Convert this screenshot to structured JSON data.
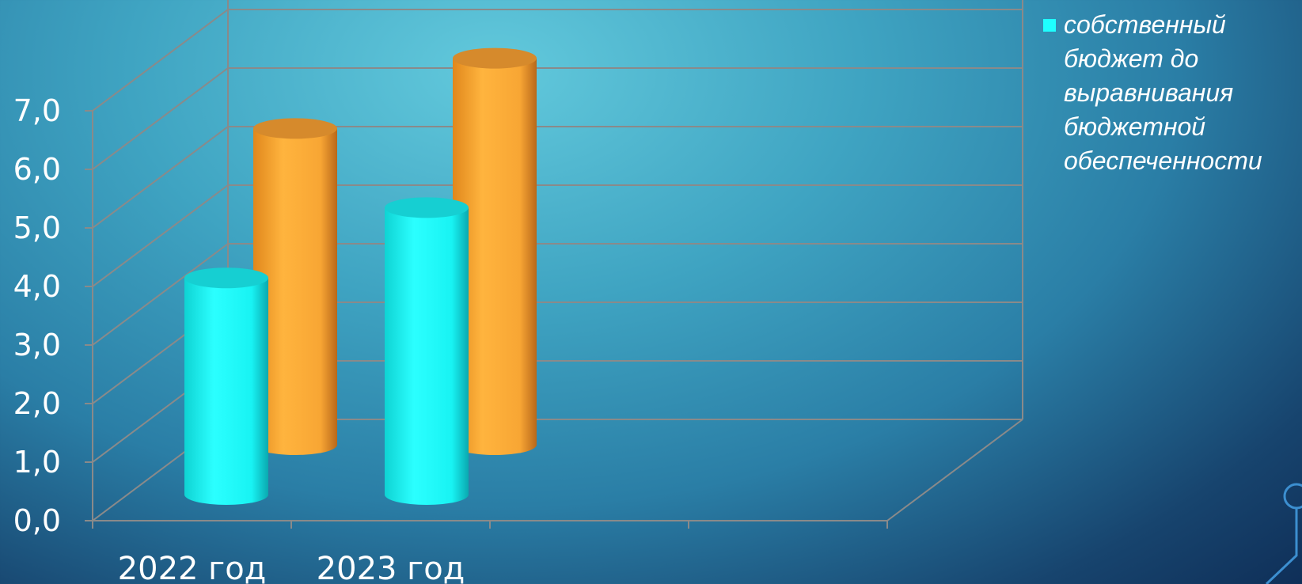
{
  "chart_data": {
    "type": "bar",
    "style": "3d-cylinder",
    "categories": [
      "2022 год",
      "2023 год"
    ],
    "series": [
      {
        "name": "собственный бюджет до выравнивания бюджетной обеспеченности",
        "color": "#1effff",
        "values": [
          3.7,
          4.9
        ]
      },
      {
        "name": "",
        "color": "#ffad3a",
        "values": [
          5.4,
          6.6
        ]
      }
    ],
    "y_ticks": [
      "0,0",
      "1,0",
      "2,0",
      "3,0",
      "4,0",
      "5,0",
      "6,0",
      "7,0"
    ],
    "ylim": [
      0,
      7
    ],
    "grid": true,
    "legend_position": "top-right"
  }
}
